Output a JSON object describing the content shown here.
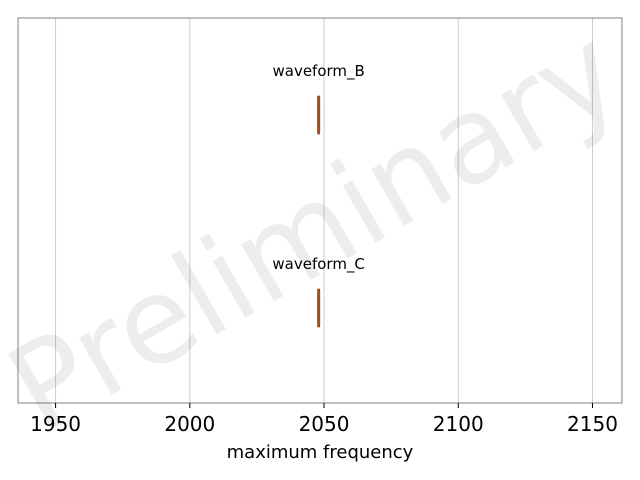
{
  "chart_data": {
    "type": "box",
    "orientation": "horizontal",
    "xlabel": "maximum frequency",
    "xlim": [
      1936,
      2161
    ],
    "xticks": [
      1950,
      2000,
      2050,
      2100,
      2150
    ],
    "grid": "x-only",
    "categories": [
      "waveform_B",
      "waveform_C"
    ],
    "series": [
      {
        "name": "waveform_B",
        "values": [
          2048,
          2048,
          2048,
          2048,
          2048
        ]
      },
      {
        "name": "waveform_C",
        "values": [
          2048,
          2048,
          2048,
          2048,
          2048
        ]
      }
    ],
    "box_fill": "#e8a05e",
    "box_edge": "#8a4a20",
    "watermark": "Preliminary"
  }
}
